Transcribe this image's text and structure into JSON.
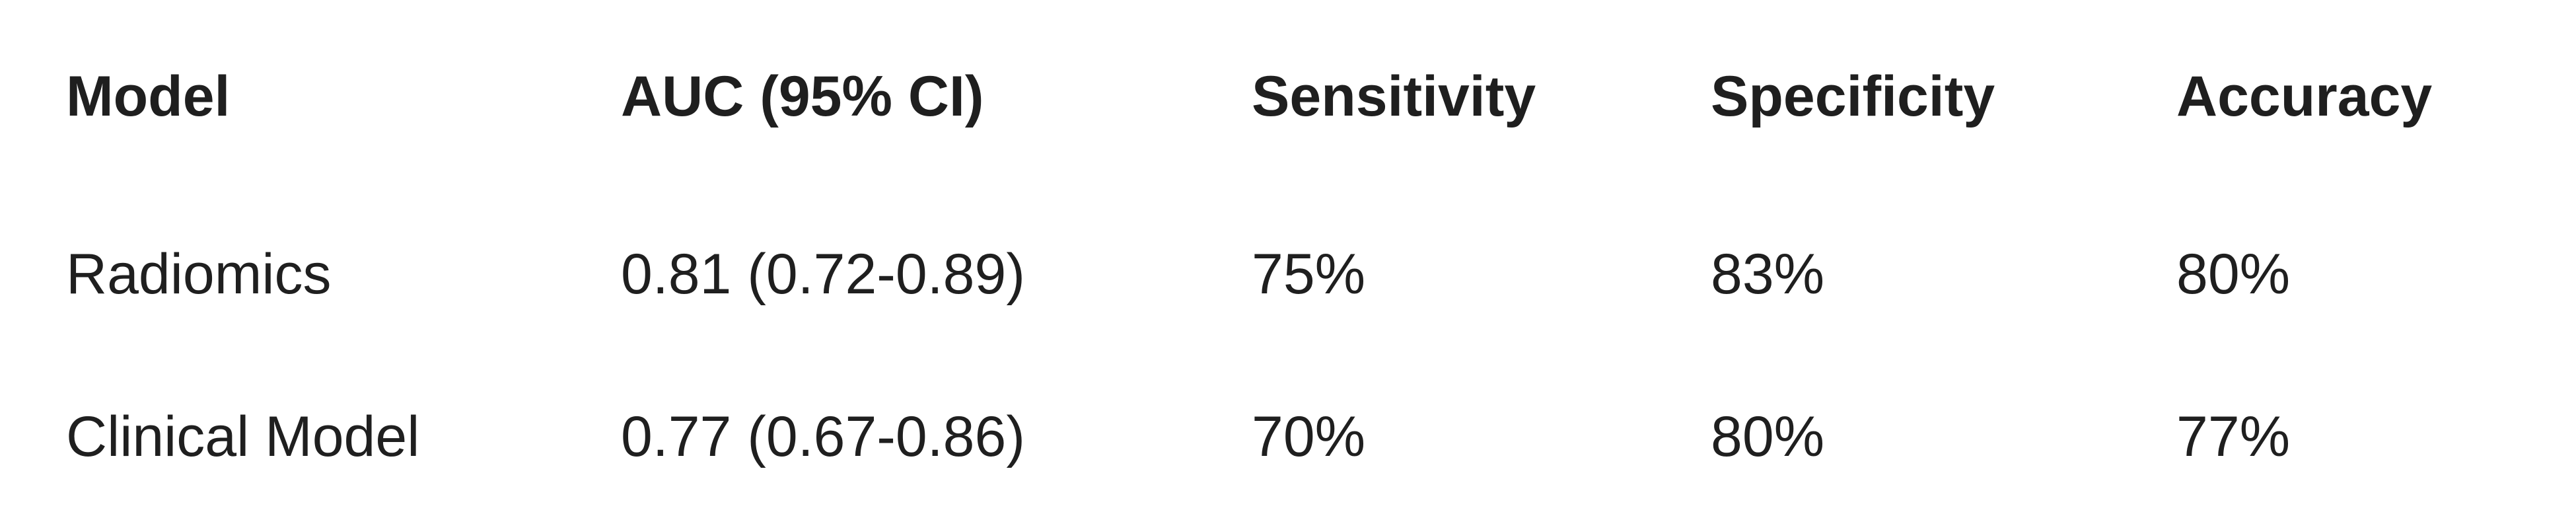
{
  "table": {
    "headers": [
      "Model",
      "AUC (95% CI)",
      "Sensitivity",
      "Specificity",
      "Accuracy"
    ],
    "rows": [
      [
        "Radiomics",
        "0.81 (0.72-0.89)",
        "75%",
        "83%",
        "80%"
      ],
      [
        "Clinical Model",
        "0.77 (0.67-0.86)",
        "70%",
        "80%",
        "77%"
      ]
    ]
  }
}
